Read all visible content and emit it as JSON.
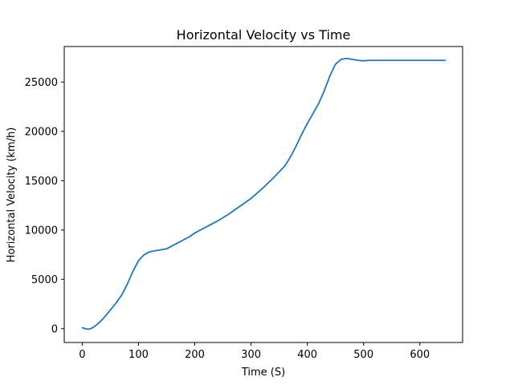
{
  "chart_data": {
    "type": "line",
    "title": "Horizontal Velocity vs Time",
    "xlabel": "Time (S)",
    "ylabel": "Horizontal Velocity (km/h)",
    "xlim": [
      -32,
      676
    ],
    "ylim": [
      -1400,
      28600
    ],
    "xticks": [
      0,
      100,
      200,
      300,
      400,
      500,
      600
    ],
    "yticks": [
      0,
      5000,
      10000,
      15000,
      20000,
      25000
    ],
    "grid": false,
    "legend": "none",
    "series": [
      {
        "color": "#1f77b4",
        "x": [
          0,
          5,
          10,
          15,
          20,
          30,
          40,
          50,
          60,
          70,
          80,
          90,
          100,
          110,
          120,
          130,
          140,
          150,
          160,
          170,
          180,
          190,
          200,
          220,
          240,
          260,
          280,
          300,
          320,
          340,
          350,
          360,
          370,
          380,
          390,
          400,
          410,
          420,
          430,
          440,
          450,
          460,
          470,
          480,
          490,
          500,
          510,
          520,
          550,
          600,
          645
        ],
        "y": [
          100,
          0,
          -50,
          0,
          150,
          600,
          1200,
          1900,
          2600,
          3400,
          4500,
          5800,
          6900,
          7500,
          7800,
          7900,
          8000,
          8100,
          8400,
          8700,
          9000,
          9300,
          9700,
          10300,
          10900,
          11600,
          12400,
          13200,
          14200,
          15300,
          15900,
          16500,
          17400,
          18500,
          19700,
          20800,
          21800,
          22800,
          24100,
          25600,
          26800,
          27300,
          27400,
          27300,
          27200,
          27150,
          27200,
          27200,
          27200,
          27200,
          27200
        ]
      }
    ]
  }
}
